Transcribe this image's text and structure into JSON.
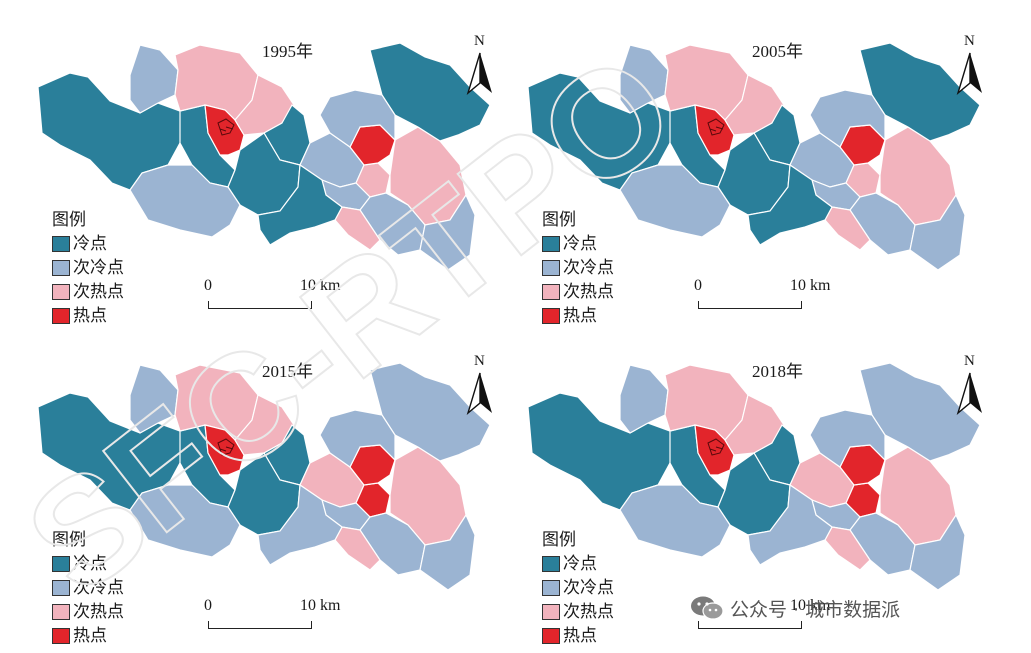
{
  "colors": {
    "cold": "#2a7f9a",
    "subcold": "#9bb4d2",
    "subhot": "#f2b3bd",
    "hot": "#e2252b",
    "border": "#ffffff"
  },
  "panels": [
    {
      "year": "1995年",
      "classes": [
        "cold",
        "cold",
        "subcold",
        "subhot",
        "hot",
        "subhot",
        "cold",
        "cold",
        "subcold",
        "subcold",
        "subhot",
        "hot",
        "subhot",
        "cold",
        "subcold",
        "subcold",
        "subcold",
        "subhot",
        "cold",
        "subcold"
      ]
    },
    {
      "year": "2005年",
      "classes": [
        "cold",
        "cold",
        "subcold",
        "subhot",
        "hot",
        "subhot",
        "cold",
        "cold",
        "subcold",
        "subcold",
        "subhot",
        "hot",
        "subhot",
        "cold",
        "subcold",
        "subcold",
        "subcold",
        "subhot",
        "cold",
        "subcold"
      ]
    },
    {
      "year": "2015年",
      "classes": [
        "cold",
        "cold",
        "subcold",
        "subhot",
        "hot",
        "subhot",
        "cold",
        "cold",
        "subcold",
        "subhot",
        "hot",
        "hot",
        "subhot",
        "subcold",
        "subcold",
        "subcold",
        "subcold",
        "subhot",
        "subcold",
        "subcold"
      ]
    },
    {
      "year": "2018年",
      "classes": [
        "cold",
        "cold",
        "subcold",
        "subhot",
        "hot",
        "subhot",
        "cold",
        "cold",
        "subcold",
        "subhot",
        "hot",
        "hot",
        "subhot",
        "subcold",
        "subcold",
        "subcold",
        "subcold",
        "subhot",
        "subcold",
        "subcold"
      ]
    }
  ],
  "legend": {
    "title": "图例",
    "items": [
      {
        "key": "cold",
        "label": "冷点"
      },
      {
        "key": "subcold",
        "label": "次冷点"
      },
      {
        "key": "subhot",
        "label": "次热点"
      },
      {
        "key": "hot",
        "label": "热点"
      }
    ]
  },
  "north_label": "N",
  "scale": {
    "zero": "0",
    "ten": "10 km"
  },
  "watermark": {
    "text": "公众号 · 城市数据派",
    "icon": "wechat-icon"
  },
  "diagonal_watermark": "SFC-RTPO"
}
